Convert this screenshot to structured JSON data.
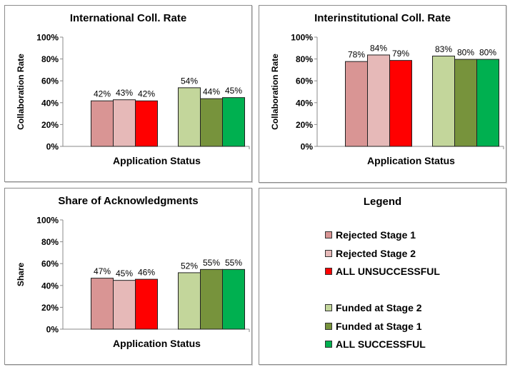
{
  "series_colors": [
    "#d99594",
    "#e6b9b8",
    "#ff0000",
    "#c3d69b",
    "#77933c",
    "#00b050"
  ],
  "chart_data": [
    {
      "type": "bar",
      "title": "International Coll. Rate",
      "xlabel": "Application Status",
      "ylabel": "Collaboration Rate",
      "ylim": [
        0,
        100
      ],
      "yticks": [
        "0%",
        "20%",
        "40%",
        "60%",
        "80%",
        "100%"
      ],
      "series": [
        {
          "name": "Rejected Stage 1",
          "value": 42,
          "label": "42%"
        },
        {
          "name": "Rejected Stage 2",
          "value": 43,
          "label": "43%"
        },
        {
          "name": "ALL UNSUCCESSFUL",
          "value": 42,
          "label": "42%"
        },
        {
          "name": "Funded at Stage 2",
          "value": 54,
          "label": "54%"
        },
        {
          "name": "Funded at Stage 1",
          "value": 44,
          "label": "44%"
        },
        {
          "name": "ALL SUCCESSFUL",
          "value": 45,
          "label": "45%"
        }
      ]
    },
    {
      "type": "bar",
      "title": "Interinstitutional Coll. Rate",
      "xlabel": "Application Status",
      "ylabel": "Collaboration Rate",
      "ylim": [
        0,
        100
      ],
      "yticks": [
        "0%",
        "20%",
        "40%",
        "60%",
        "80%",
        "100%"
      ],
      "series": [
        {
          "name": "Rejected Stage 1",
          "value": 78,
          "label": "78%"
        },
        {
          "name": "Rejected Stage 2",
          "value": 84,
          "label": "84%"
        },
        {
          "name": "ALL UNSUCCESSFUL",
          "value": 79,
          "label": "79%"
        },
        {
          "name": "Funded at Stage 2",
          "value": 83,
          "label": "83%"
        },
        {
          "name": "Funded at Stage 1",
          "value": 80,
          "label": "80%"
        },
        {
          "name": "ALL SUCCESSFUL",
          "value": 80,
          "label": "80%"
        }
      ]
    },
    {
      "type": "bar",
      "title": "Share of Acknowledgments",
      "xlabel": "Application Status",
      "ylabel": "Share",
      "ylim": [
        0,
        100
      ],
      "yticks": [
        "0%",
        "20%",
        "40%",
        "60%",
        "80%",
        "100%"
      ],
      "series": [
        {
          "name": "Rejected Stage 1",
          "value": 47,
          "label": "47%"
        },
        {
          "name": "Rejected Stage 2",
          "value": 45,
          "label": "45%"
        },
        {
          "name": "ALL UNSUCCESSFUL",
          "value": 46,
          "label": "46%"
        },
        {
          "name": "Funded at Stage 2",
          "value": 52,
          "label": "52%"
        },
        {
          "name": "Funded at Stage 1",
          "value": 55,
          "label": "55%"
        },
        {
          "name": "ALL SUCCESSFUL",
          "value": 55,
          "label": "55%"
        }
      ]
    }
  ],
  "legend": {
    "title": "Legend",
    "items": [
      {
        "label": "Rejected Stage 1",
        "color": "#d99594"
      },
      {
        "label": "Rejected Stage 2",
        "color": "#e6b9b8"
      },
      {
        "label": "ALL UNSUCCESSFUL",
        "color": "#ff0000"
      },
      {
        "label": "Funded at Stage 2",
        "color": "#c3d69b"
      },
      {
        "label": "Funded at Stage 1",
        "color": "#77933c"
      },
      {
        "label": "ALL SUCCESSFUL",
        "color": "#00b050"
      }
    ]
  }
}
